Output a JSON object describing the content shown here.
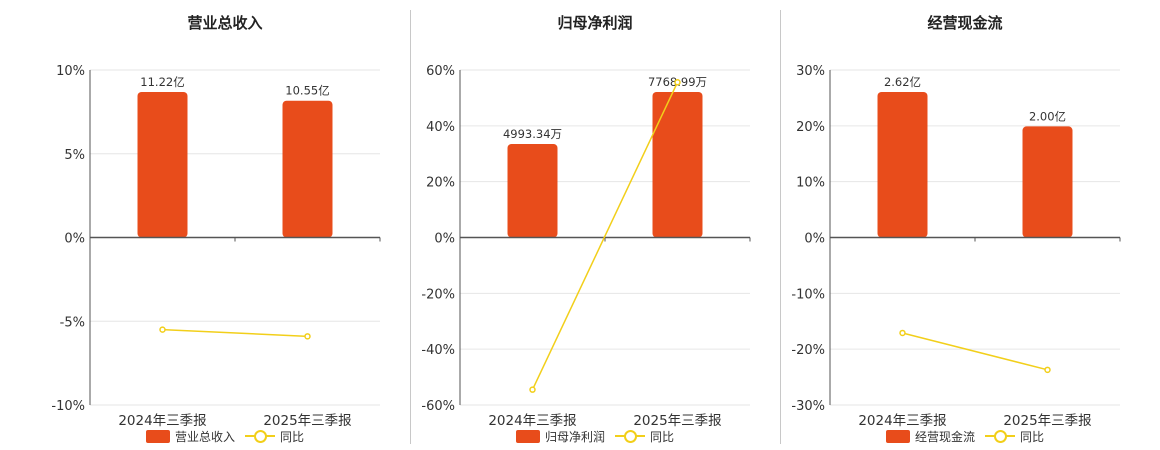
{
  "colors": {
    "bar": "#e84c1b",
    "line": "#f2cf1a",
    "axis": "#555555",
    "grid": "#e6e6e6"
  },
  "chart_data": [
    {
      "type": "bar",
      "title": "营业总收入",
      "categories": [
        "2024年三季报",
        "2025年三季报"
      ],
      "values": [
        11.22,
        10.55
      ],
      "value_labels": [
        "11.22亿",
        "10.55亿"
      ],
      "unit": "亿",
      "ylim": [
        -10,
        10
      ],
      "yticks": [
        10,
        5,
        0,
        -5,
        -10
      ],
      "ytick_labels": [
        "10%",
        "5%",
        "0%",
        "-5%",
        "-10%"
      ],
      "line_values": [
        -5.5,
        -5.9
      ],
      "legend": [
        {
          "label": "营业总收入"
        },
        {
          "label": "同比"
        }
      ],
      "grid": true
    },
    {
      "type": "bar",
      "title": "归母净利润",
      "categories": [
        "2024年三季报",
        "2025年三季报"
      ],
      "values": [
        4993.34,
        7768.99
      ],
      "value_labels": [
        "4993.34万",
        "7768.99万"
      ],
      "unit": "万",
      "ylim": [
        -60,
        60
      ],
      "yticks": [
        60,
        40,
        20,
        0,
        -20,
        -40,
        -60
      ],
      "ytick_labels": [
        "60%",
        "40%",
        "20%",
        "0%",
        "-20%",
        "-40%",
        "-60%"
      ],
      "line_values": [
        -54.5,
        55.6
      ],
      "legend": [
        {
          "label": "归母净利润"
        },
        {
          "label": "同比"
        }
      ],
      "grid": true
    },
    {
      "type": "bar",
      "title": "经营现金流",
      "categories": [
        "2024年三季报",
        "2025年三季报"
      ],
      "values": [
        2.62,
        2.0
      ],
      "value_labels": [
        "2.62亿",
        "2.00亿"
      ],
      "unit": "亿",
      "ylim": [
        -30,
        30
      ],
      "yticks": [
        30,
        20,
        10,
        0,
        -10,
        -20,
        -30
      ],
      "ytick_labels": [
        "30%",
        "20%",
        "10%",
        "0%",
        "-10%",
        "-20%",
        "-30%"
      ],
      "line_values": [
        -17.1,
        -23.7
      ],
      "legend": [
        {
          "label": "经营现金流"
        },
        {
          "label": "同比"
        }
      ],
      "grid": true
    }
  ]
}
